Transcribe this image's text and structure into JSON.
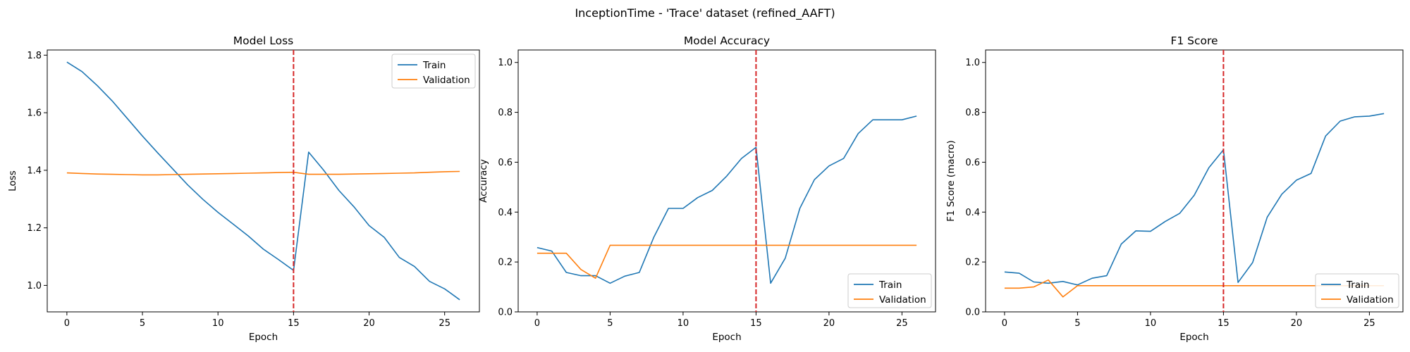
{
  "figure": {
    "suptitle": "InceptionTime - 'Trace' dataset (refined_AAFT)"
  },
  "chart_data": [
    {
      "type": "line",
      "title": "Model Loss",
      "xlabel": "Epoch",
      "ylabel": "Loss",
      "xlim": [
        -1.3,
        27.3
      ],
      "ylim": [
        0.908,
        1.818
      ],
      "xticks": [
        0,
        5,
        10,
        15,
        20,
        25
      ],
      "yticks": [
        1.0,
        1.2,
        1.4,
        1.6,
        1.8
      ],
      "ytick_format": 1,
      "vline": {
        "x": 15,
        "color": "#d62728",
        "style": "dashed"
      },
      "legend": "upper-right",
      "x": [
        0,
        1,
        2,
        3,
        4,
        5,
        6,
        7,
        8,
        9,
        10,
        11,
        12,
        13,
        14,
        15,
        16,
        17,
        18,
        19,
        20,
        21,
        22,
        23,
        24,
        25,
        26
      ],
      "series": [
        {
          "name": "Train",
          "color": "#1f77b4",
          "values": [
            1.776,
            1.743,
            1.695,
            1.641,
            1.58,
            1.519,
            1.461,
            1.405,
            1.349,
            1.299,
            1.254,
            1.213,
            1.172,
            1.126,
            1.09,
            1.052,
            1.463,
            1.4,
            1.33,
            1.273,
            1.208,
            1.167,
            1.097,
            1.066,
            1.014,
            0.988,
            0.95
          ]
        },
        {
          "name": "Validation",
          "color": "#ff7f0e",
          "values": [
            1.391,
            1.389,
            1.387,
            1.386,
            1.385,
            1.384,
            1.384,
            1.385,
            1.386,
            1.387,
            1.388,
            1.389,
            1.39,
            1.391,
            1.392,
            1.393,
            1.386,
            1.386,
            1.386,
            1.387,
            1.388,
            1.389,
            1.39,
            1.391,
            1.393,
            1.395,
            1.396
          ]
        }
      ]
    },
    {
      "type": "line",
      "title": "Model Accuracy",
      "xlabel": "Epoch",
      "ylabel": "Accuracy",
      "xlim": [
        -1.3,
        27.3
      ],
      "ylim": [
        0.0,
        1.05
      ],
      "xticks": [
        0,
        5,
        10,
        15,
        20,
        25
      ],
      "yticks": [
        0.0,
        0.2,
        0.4,
        0.6,
        0.8,
        1.0
      ],
      "ytick_format": 1,
      "vline": {
        "x": 15,
        "color": "#d62728",
        "style": "dashed"
      },
      "legend": "lower-right",
      "x": [
        0,
        1,
        2,
        3,
        4,
        5,
        6,
        7,
        8,
        9,
        10,
        11,
        12,
        13,
        14,
        15,
        16,
        17,
        18,
        19,
        20,
        21,
        22,
        23,
        24,
        25,
        26
      ],
      "series": [
        {
          "name": "Train",
          "color": "#1f77b4",
          "values": [
            0.258,
            0.244,
            0.158,
            0.145,
            0.145,
            0.115,
            0.143,
            0.158,
            0.3,
            0.415,
            0.415,
            0.458,
            0.487,
            0.545,
            0.615,
            0.66,
            0.115,
            0.215,
            0.415,
            0.53,
            0.585,
            0.615,
            0.715,
            0.77,
            0.77,
            0.77,
            0.785
          ]
        },
        {
          "name": "Validation",
          "color": "#ff7f0e",
          "values": [
            0.235,
            0.235,
            0.235,
            0.17,
            0.135,
            0.267,
            0.267,
            0.267,
            0.267,
            0.267,
            0.267,
            0.267,
            0.267,
            0.267,
            0.267,
            0.267,
            0.267,
            0.267,
            0.267,
            0.267,
            0.267,
            0.267,
            0.267,
            0.267,
            0.267,
            0.267,
            0.267
          ]
        }
      ]
    },
    {
      "type": "line",
      "title": "F1 Score",
      "xlabel": "Epoch",
      "ylabel": "F1 Score (macro)",
      "xlim": [
        -1.3,
        27.3
      ],
      "ylim": [
        0.0,
        1.05
      ],
      "xticks": [
        0,
        5,
        10,
        15,
        20,
        25
      ],
      "yticks": [
        0.0,
        0.2,
        0.4,
        0.6,
        0.8,
        1.0
      ],
      "ytick_format": 1,
      "vline": {
        "x": 15,
        "color": "#d62728",
        "style": "dashed"
      },
      "legend": "lower-right",
      "x": [
        0,
        1,
        2,
        3,
        4,
        5,
        6,
        7,
        8,
        9,
        10,
        11,
        12,
        13,
        14,
        15,
        16,
        17,
        18,
        19,
        20,
        21,
        22,
        23,
        24,
        25,
        26
      ],
      "series": [
        {
          "name": "Train",
          "color": "#1f77b4",
          "values": [
            0.16,
            0.155,
            0.12,
            0.115,
            0.122,
            0.108,
            0.135,
            0.145,
            0.272,
            0.325,
            0.323,
            0.362,
            0.395,
            0.468,
            0.578,
            0.65,
            0.118,
            0.198,
            0.38,
            0.472,
            0.528,
            0.555,
            0.705,
            0.765,
            0.782,
            0.785,
            0.795
          ]
        },
        {
          "name": "Validation",
          "color": "#ff7f0e",
          "values": [
            0.095,
            0.095,
            0.1,
            0.128,
            0.06,
            0.105,
            0.105,
            0.105,
            0.105,
            0.105,
            0.105,
            0.105,
            0.105,
            0.105,
            0.105,
            0.105,
            0.105,
            0.105,
            0.105,
            0.105,
            0.105,
            0.105,
            0.105,
            0.105,
            0.105,
            0.105,
            0.105
          ]
        }
      ]
    }
  ]
}
